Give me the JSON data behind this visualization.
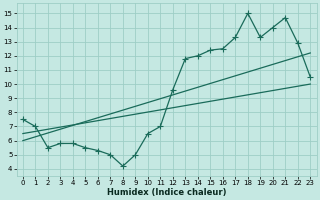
{
  "xlabel": "Humidex (Indice chaleur)",
  "bg_color": "#c5e8e2",
  "grid_color": "#9ecec6",
  "line_color": "#1a6b5a",
  "xlim": [
    -0.5,
    23.5
  ],
  "ylim": [
    3.5,
    15.7
  ],
  "xticks": [
    0,
    1,
    2,
    3,
    4,
    5,
    6,
    7,
    8,
    9,
    10,
    11,
    12,
    13,
    14,
    15,
    16,
    17,
    18,
    19,
    20,
    21,
    22,
    23
  ],
  "yticks": [
    4,
    5,
    6,
    7,
    8,
    9,
    10,
    11,
    12,
    13,
    14,
    15
  ],
  "line1_x": [
    0,
    1,
    2,
    3,
    4,
    5,
    6,
    7,
    8,
    9,
    10,
    11,
    12,
    13,
    14,
    15,
    16,
    17,
    18,
    19,
    20,
    21,
    22,
    23
  ],
  "line1_y": [
    7.5,
    7.0,
    5.5,
    5.8,
    5.8,
    5.5,
    5.3,
    5.0,
    4.2,
    5.0,
    6.5,
    7.0,
    9.6,
    11.8,
    12.0,
    12.4,
    12.5,
    13.3,
    15.0,
    13.3,
    14.0,
    14.7,
    12.9,
    10.5
  ],
  "line2_x": [
    0,
    23
  ],
  "line2_y": [
    6.5,
    10.0
  ],
  "line3_x": [
    0,
    23
  ],
  "line3_y": [
    6.0,
    12.2
  ],
  "marker": "+",
  "markersize": 4,
  "markeredgewidth": 0.8,
  "linewidth": 0.9,
  "tick_labelsize": 5,
  "xlabel_fontsize": 6
}
